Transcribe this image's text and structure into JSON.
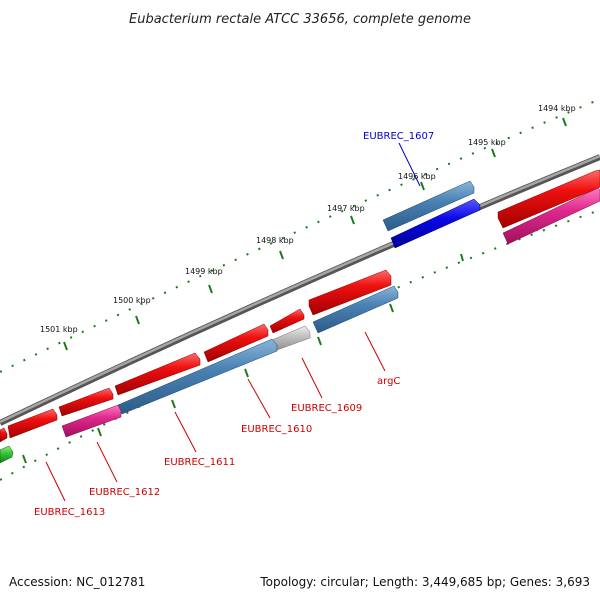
{
  "title": "Eubacterium rectale ATCC 33656, complete genome",
  "footer": {
    "accession": "Accession: NC_012781",
    "summary": "Topology: circular; Length: 3,449,685 bp; Genes: 3,693"
  },
  "colors": {
    "backbone": "#8a8a8a",
    "ticks": "#1a7a1a",
    "forward_gene": "#e8141e",
    "reverse_gene": "#4a82b4",
    "highlight_gene": "#0a0ae6",
    "pink_gene": "#e0288c",
    "green_gene": "#3ac83a",
    "gray_gene": "#c0c0c0",
    "label_red": "#cc0000",
    "label_blue": "#0000cc"
  },
  "kbp_labels": [
    "1494 kbp",
    "1495 kbp",
    "1496 kbp",
    "1497 kbp",
    "1498 kbp",
    "1499 kbp",
    "1500 kbp",
    "1501 kbp"
  ],
  "gene_labels": [
    {
      "text": "EUBREC_1607",
      "color": "blue"
    },
    {
      "text": "argC",
      "color": "red"
    },
    {
      "text": "EUBREC_1609",
      "color": "red"
    },
    {
      "text": "EUBREC_1610",
      "color": "red"
    },
    {
      "text": "EUBREC_1611",
      "color": "red"
    },
    {
      "text": "EUBREC_1612",
      "color": "red"
    },
    {
      "text": "EUBREC_1613",
      "color": "red"
    }
  ]
}
